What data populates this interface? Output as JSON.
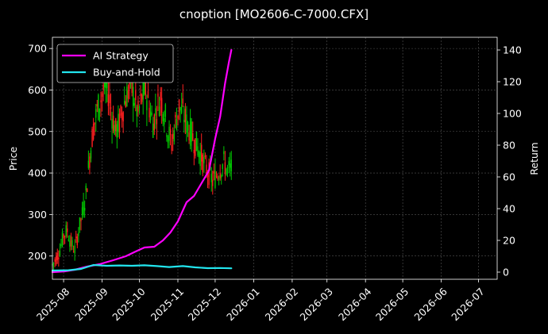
{
  "chart_data": {
    "type": "line",
    "title": "cnoption [MO2606-C-7000.CFX]",
    "xlabel": "",
    "ylabel": "Price",
    "y2label": "Return",
    "xlim": [
      "2025-07-23",
      "2026-07-16"
    ],
    "ylim": [
      144,
      727
    ],
    "y2lim": [
      -4.5,
      148
    ],
    "x_ticks": [
      "2025-08",
      "2025-09",
      "2025-10",
      "2025-11",
      "2025-12",
      "2026-01",
      "2026-02",
      "2026-03",
      "2026-04",
      "2026-05",
      "2026-06",
      "2026-07"
    ],
    "y_ticks": [
      200,
      300,
      400,
      500,
      600,
      700
    ],
    "y2_ticks": [
      0,
      20,
      40,
      60,
      80,
      100,
      120,
      140
    ],
    "grid": true,
    "legend_position": "top-left",
    "colors": {
      "background": "#000000",
      "grid": "#555555",
      "up_candle": "#00c800",
      "down_candle": "#ff2020",
      "strategy": "#ff00ff",
      "benchmark": "#22e5ee"
    },
    "candlestick_price": {
      "anchors": [
        [
          "2025-07-23",
          178
        ],
        [
          "2025-07-26",
          195
        ],
        [
          "2025-07-29",
          215
        ],
        [
          "2025-08-01",
          250
        ],
        [
          "2025-08-04",
          262
        ],
        [
          "2025-08-07",
          230
        ],
        [
          "2025-08-10",
          215
        ],
        [
          "2025-08-13",
          260
        ],
        [
          "2025-08-16",
          300
        ],
        [
          "2025-08-19",
          350
        ],
        [
          "2025-08-22",
          440
        ],
        [
          "2025-08-25",
          510
        ],
        [
          "2025-08-28",
          550
        ],
        [
          "2025-08-31",
          580
        ],
        [
          "2025-09-03",
          610
        ],
        [
          "2025-09-06",
          595
        ],
        [
          "2025-09-09",
          540
        ],
        [
          "2025-09-12",
          500
        ],
        [
          "2025-09-15",
          520
        ],
        [
          "2025-09-18",
          560
        ],
        [
          "2025-09-21",
          590
        ],
        [
          "2025-09-24",
          610
        ],
        [
          "2025-09-27",
          580
        ],
        [
          "2025-09-30",
          540
        ],
        [
          "2025-10-03",
          580
        ],
        [
          "2025-10-06",
          600
        ],
        [
          "2025-10-09",
          560
        ],
        [
          "2025-10-12",
          520
        ],
        [
          "2025-10-15",
          555
        ],
        [
          "2025-10-18",
          585
        ],
        [
          "2025-10-21",
          550
        ],
        [
          "2025-10-24",
          500
        ],
        [
          "2025-10-27",
          470
        ],
        [
          "2025-10-30",
          520
        ],
        [
          "2025-11-02",
          560
        ],
        [
          "2025-11-05",
          545
        ],
        [
          "2025-11-08",
          520
        ],
        [
          "2025-11-11",
          500
        ],
        [
          "2025-11-14",
          480
        ],
        [
          "2025-11-17",
          460
        ],
        [
          "2025-11-20",
          440
        ],
        [
          "2025-11-23",
          415
        ],
        [
          "2025-11-26",
          400
        ],
        [
          "2025-11-29",
          380
        ],
        [
          "2025-12-02",
          395
        ],
        [
          "2025-12-05",
          410
        ],
        [
          "2025-12-08",
          425
        ],
        [
          "2025-12-11",
          405
        ],
        [
          "2025-12-14",
          410
        ]
      ]
    },
    "series": [
      {
        "name": "AI Strategy",
        "points": [
          [
            "2025-07-23",
            0.0
          ],
          [
            "2025-08-02",
            0.5
          ],
          [
            "2025-08-10",
            1.5
          ],
          [
            "2025-08-20",
            3.5
          ],
          [
            "2025-08-30",
            5.0
          ],
          [
            "2025-09-10",
            7.5
          ],
          [
            "2025-09-20",
            10.0
          ],
          [
            "2025-09-28",
            13.0
          ],
          [
            "2025-10-05",
            15.5
          ],
          [
            "2025-10-13",
            16.0
          ],
          [
            "2025-10-20",
            20.0
          ],
          [
            "2025-10-26",
            25.0
          ],
          [
            "2025-11-01",
            32.0
          ],
          [
            "2025-11-08",
            44.0
          ],
          [
            "2025-11-14",
            48.0
          ],
          [
            "2025-11-20",
            56.0
          ],
          [
            "2025-11-26",
            64.0
          ],
          [
            "2025-12-01",
            84.0
          ],
          [
            "2025-12-05",
            98.0
          ],
          [
            "2025-12-09",
            119.0
          ],
          [
            "2025-12-12",
            132.0
          ],
          [
            "2025-12-14",
            140.0
          ]
        ]
      },
      {
        "name": "Buy-and-Hold",
        "points": [
          [
            "2025-07-23",
            1.0
          ],
          [
            "2025-08-05",
            1.2
          ],
          [
            "2025-08-15",
            2.0
          ],
          [
            "2025-08-25",
            4.5
          ],
          [
            "2025-09-05",
            4.0
          ],
          [
            "2025-09-15",
            4.2
          ],
          [
            "2025-09-25",
            4.0
          ],
          [
            "2025-10-05",
            4.3
          ],
          [
            "2025-10-15",
            3.8
          ],
          [
            "2025-10-25",
            3.2
          ],
          [
            "2025-11-05",
            3.8
          ],
          [
            "2025-11-15",
            3.0
          ],
          [
            "2025-11-25",
            2.5
          ],
          [
            "2025-12-05",
            2.6
          ],
          [
            "2025-12-14",
            2.4
          ]
        ]
      }
    ]
  }
}
